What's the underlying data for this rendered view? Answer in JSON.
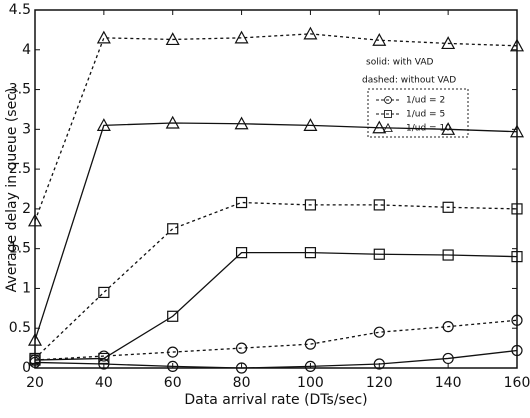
{
  "chart_data": {
    "type": "line",
    "xlabel": "Data arrival rate (DTs/sec)",
    "ylabel": "Average delay in queue (sec)",
    "annotations": [
      "solid: with VAD",
      "dashed: without VAD"
    ],
    "x": [
      20,
      40,
      60,
      80,
      100,
      120,
      140,
      160
    ],
    "series": [
      {
        "name": "1/ud = 2",
        "marker": "circle",
        "color": "#111111",
        "solid": [
          0.07,
          0.05,
          0.02,
          0.0,
          0.02,
          0.05,
          0.12,
          0.22
        ],
        "dashed": [
          0.1,
          0.15,
          0.2,
          0.25,
          0.3,
          0.45,
          0.52,
          0.6
        ]
      },
      {
        "name": "1/ud = 5",
        "marker": "square",
        "color": "#111111",
        "solid": [
          0.1,
          0.12,
          0.65,
          1.45,
          1.45,
          1.43,
          1.42,
          1.4
        ],
        "dashed": [
          0.12,
          0.95,
          1.75,
          2.08,
          2.05,
          2.05,
          2.02,
          2.0
        ]
      },
      {
        "name": "1/ud = 10",
        "marker": "triangle",
        "color": "#111111",
        "solid": [
          0.35,
          3.05,
          3.08,
          3.07,
          3.05,
          3.02,
          3.0,
          2.97
        ],
        "dashed": [
          1.85,
          4.15,
          4.13,
          4.15,
          4.2,
          4.12,
          4.08,
          4.05
        ]
      }
    ],
    "xlim": [
      20,
      160
    ],
    "ylim": [
      0,
      4.5
    ],
    "xticks": [
      20,
      40,
      60,
      80,
      100,
      120,
      140,
      160
    ],
    "yticks": [
      0,
      0.5,
      1,
      1.5,
      2,
      2.5,
      3,
      3.5,
      4,
      4.5
    ],
    "grid": false
  }
}
